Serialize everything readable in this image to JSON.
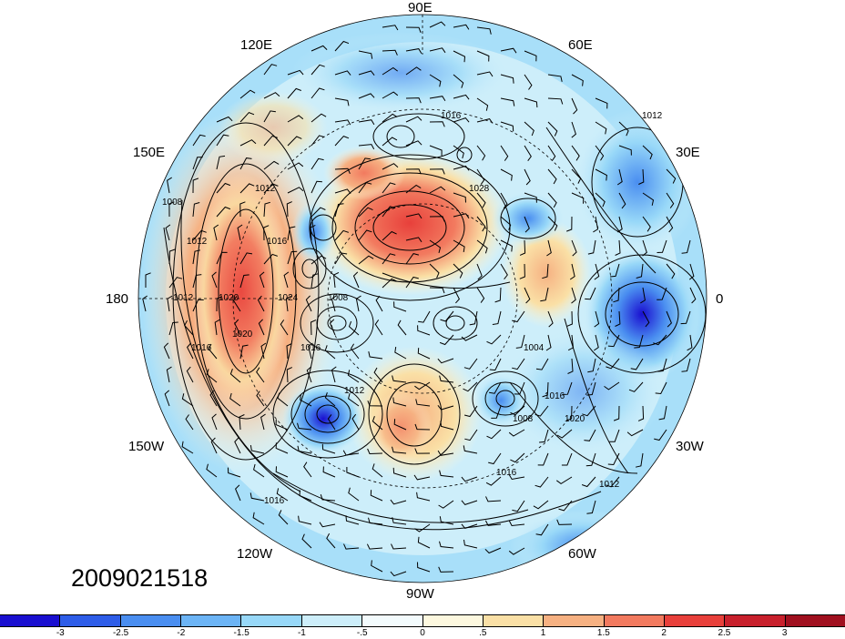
{
  "timestamp": "2009021518",
  "longitude_labels": [
    "90E",
    "60E",
    "30E",
    "0",
    "30W",
    "60W",
    "90W",
    "120W",
    "150W",
    "180",
    "150E",
    "120E"
  ],
  "isobar_labels": [
    "1016",
    "1028",
    "1012",
    "1012",
    "1008",
    "1012",
    "1016",
    "1020",
    "1024",
    "1016",
    "1012",
    "1016",
    "1008",
    "1012",
    "1020",
    "1016",
    "1016",
    "1020",
    "1012",
    "1008",
    "1004",
    "1016"
  ],
  "colorbar": {
    "colors": [
      "#1a0fd0",
      "#2e5de8",
      "#4a8ef0",
      "#6cb4f5",
      "#98d8f8",
      "#cdeefa",
      "#f3fbfd",
      "#fdf8df",
      "#fae0a6",
      "#f6b182",
      "#f27a5f",
      "#e8403b",
      "#c8202c",
      "#a0101f"
    ],
    "tick_labels": [
      "-3",
      "-2.5",
      "-2",
      "-1.5",
      "-1",
      "-.5",
      "0",
      ".5",
      "1",
      "1.5",
      "2",
      "2.5",
      "3"
    ]
  }
}
